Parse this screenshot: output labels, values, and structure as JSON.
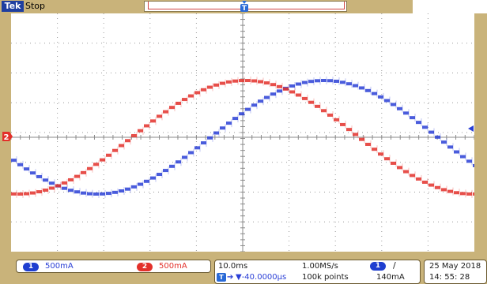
{
  "header": {
    "brand": "Tek",
    "status": "Stop",
    "trigger_label": "T"
  },
  "channels": [
    {
      "number": "1",
      "scale": "500mA",
      "color": "#2a3fd6"
    },
    {
      "number": "2",
      "scale": "500mA",
      "color": "#e3302a"
    }
  ],
  "left_markers": {
    "ch2_label": "2"
  },
  "timebase": {
    "horizontal_scale": "10.0ms",
    "sample_rate": "1.00MS/s",
    "delay": "▼-40.0000μs",
    "record_length": "100k points",
    "trigger_source": "1",
    "trigger_slope": "/",
    "trigger_level": "140mA"
  },
  "clock": {
    "date": "25 May  2018",
    "time": "14: 55: 28"
  },
  "colors": {
    "bezel": "#c9b37a",
    "screen": "#ffffff",
    "grid": "#9a9a9a",
    "ch1": "#2a3fd6",
    "ch2": "#e3302a"
  },
  "chart_data": {
    "type": "line",
    "x_divisions": 10,
    "y_divisions": 8,
    "x_unit_per_div": "10.0ms",
    "y_unit_per_div": "500mA",
    "series": [
      {
        "name": "1",
        "amplitude_div": 1.23,
        "period_div": 9.8,
        "phase_peak_div": 6.7,
        "offset_div": 0.0
      },
      {
        "name": "2",
        "amplitude_div": 1.23,
        "period_div": 9.8,
        "phase_peak_div": 5.0,
        "offset_div": 0.0
      }
    ]
  }
}
